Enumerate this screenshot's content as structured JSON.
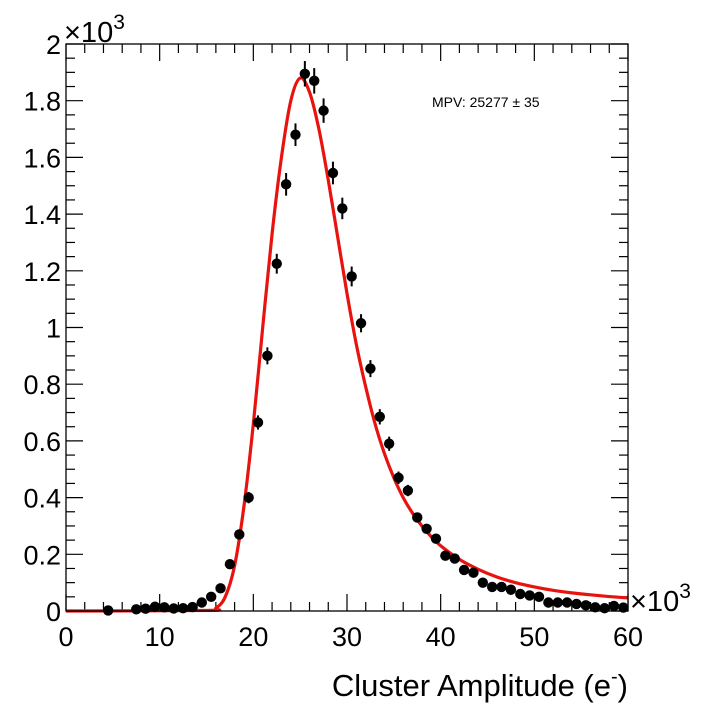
{
  "chart_data": {
    "type": "scatter",
    "xlabel": "Cluster Amplitude (e",
    "xlabel_superscript": "-",
    "xlabel_close": ")",
    "x_multiplier_label": "×10",
    "x_multiplier_exp": "3",
    "y_multiplier_label": "×10",
    "y_multiplier_exp": "3",
    "xlim": [
      0,
      60
    ],
    "ylim": [
      0,
      2
    ],
    "x_ticks": [
      0,
      10,
      20,
      30,
      40,
      50,
      60
    ],
    "x_tick_labels": [
      "0",
      "10",
      "20",
      "30",
      "40",
      "50",
      "60"
    ],
    "y_ticks": [
      0,
      0.2,
      0.4,
      0.6,
      0.8,
      1,
      1.2,
      1.4,
      1.6,
      1.8,
      2
    ],
    "y_tick_labels": [
      "0",
      "0.2",
      "0.4",
      "0.6",
      "0.8",
      "1",
      "1.2",
      "1.4",
      "1.6",
      "1.8",
      "2"
    ],
    "annotation": "MPV: 25277 ± 35",
    "colors": {
      "data": "#000000",
      "fit": "#e8130f",
      "frame": "#000000"
    },
    "series": [
      {
        "name": "data",
        "x": [
          4.5,
          7.5,
          8.5,
          9.5,
          10.5,
          11.5,
          12.5,
          13.5,
          14.5,
          15.5,
          16.5,
          17.5,
          18.5,
          19.5,
          20.5,
          21.5,
          22.5,
          23.5,
          24.5,
          25.5,
          26.5,
          27.5,
          28.5,
          29.5,
          30.5,
          31.5,
          32.5,
          33.5,
          34.5,
          35.5,
          36.5,
          37.5,
          38.5,
          39.5,
          40.5,
          41.5,
          42.5,
          43.5,
          44.5,
          45.5,
          46.5,
          47.5,
          48.5,
          49.5,
          50.5,
          51.5,
          52.5,
          53.5,
          54.5,
          55.5,
          56.5,
          57.5,
          58.5,
          59.5
        ],
        "y": [
          0.002,
          0.006,
          0.008,
          0.015,
          0.013,
          0.009,
          0.01,
          0.014,
          0.03,
          0.05,
          0.08,
          0.165,
          0.27,
          0.4,
          0.665,
          0.9,
          1.225,
          1.505,
          1.68,
          1.895,
          1.87,
          1.765,
          1.545,
          1.42,
          1.18,
          1.015,
          0.855,
          0.685,
          0.59,
          0.47,
          0.425,
          0.33,
          0.29,
          0.255,
          0.195,
          0.185,
          0.145,
          0.135,
          0.1,
          0.085,
          0.085,
          0.075,
          0.06,
          0.055,
          0.05,
          0.03,
          0.03,
          0.03,
          0.025,
          0.02,
          0.013,
          0.01,
          0.018,
          0.012
        ],
        "yerr": [
          0,
          0,
          0,
          0,
          0,
          0,
          0,
          0,
          0,
          0,
          0,
          0,
          0.015,
          0.02,
          0.025,
          0.03,
          0.035,
          0.04,
          0.04,
          0.045,
          0.045,
          0.043,
          0.04,
          0.038,
          0.035,
          0.032,
          0.03,
          0.027,
          0.025,
          0.022,
          0.02,
          0,
          0,
          0,
          0,
          0,
          0,
          0,
          0,
          0,
          0,
          0,
          0,
          0,
          0,
          0,
          0,
          0,
          0,
          0,
          0,
          0,
          0,
          0
        ]
      },
      {
        "name": "fit",
        "type": "line",
        "x": [
          0,
          15,
          16,
          17,
          18,
          19,
          20,
          21,
          22,
          23,
          24,
          25,
          26,
          27,
          28,
          29,
          30,
          31,
          32,
          33,
          34,
          35,
          36,
          37,
          38,
          39,
          40,
          42,
          44,
          46,
          48,
          50,
          52,
          54,
          56,
          58,
          60
        ],
        "y": [
          0,
          0.002,
          0.01,
          0.05,
          0.16,
          0.37,
          0.66,
          1.0,
          1.33,
          1.6,
          1.8,
          1.88,
          1.83,
          1.7,
          1.52,
          1.32,
          1.12,
          0.94,
          0.79,
          0.66,
          0.555,
          0.47,
          0.4,
          0.345,
          0.3,
          0.262,
          0.23,
          0.182,
          0.147,
          0.12,
          0.1,
          0.085,
          0.073,
          0.064,
          0.057,
          0.051,
          0.046
        ]
      }
    ]
  }
}
